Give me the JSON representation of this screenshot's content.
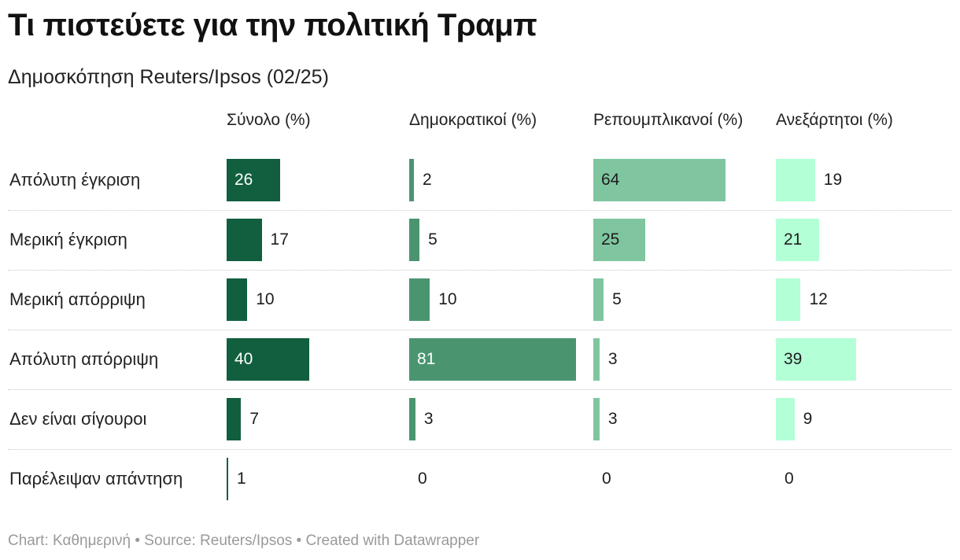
{
  "title": "Τι πιστεύετε για την πολιτική Τραμπ",
  "subtitle": "Δημοσκόπηση Reuters/Ipsos (02/25)",
  "footer": "Chart: Καθημερινή • Source: Reuters/Ipsos • Created with Datawrapper",
  "colors": {
    "total": "#115f3e",
    "democrats": "#4a9570",
    "republicans": "#7fc6a0",
    "independents": "#b3ffd6"
  },
  "chart_data": {
    "type": "bar",
    "title": "Τι πιστεύετε για την πολιτική Τραμπ",
    "subtitle": "Δημοσκόπηση Reuters/Ipsos (02/25)",
    "categories": [
      "Απόλυτη έγκριση",
      "Μερική έγκριση",
      "Μερική απόρριψη",
      "Απόλυτη απόρριψη",
      "Δεν είναι σίγουροι",
      "Παρέλειψαν απάντηση"
    ],
    "series": [
      {
        "name": "Σύνολο (%)",
        "values": [
          26,
          17,
          10,
          40,
          7,
          1
        ]
      },
      {
        "name": "Δημοκρατικοί (%)",
        "values": [
          2,
          5,
          10,
          81,
          3,
          0
        ]
      },
      {
        "name": "Ρεπουμπλικανοί (%)",
        "values": [
          64,
          25,
          5,
          3,
          3,
          0
        ]
      },
      {
        "name": "Ανεξάρτητοι (%)",
        "values": [
          19,
          21,
          12,
          39,
          9,
          0
        ]
      }
    ],
    "xlim": [
      0,
      100
    ]
  }
}
